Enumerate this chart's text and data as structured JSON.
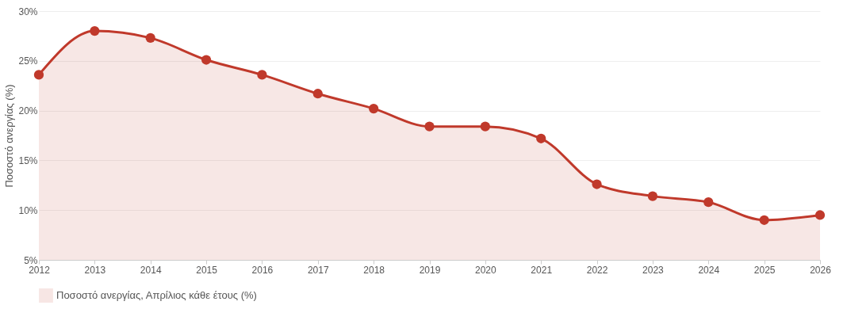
{
  "chart_data": {
    "type": "area",
    "ylabel": "Ποσοστό ανεργίας (%)",
    "categories": [
      "2012",
      "2013",
      "2014",
      "2015",
      "2016",
      "2017",
      "2018",
      "2019",
      "2020",
      "2021",
      "2022",
      "2023",
      "2024",
      "2025",
      "2026"
    ],
    "series": [
      {
        "name": "Ποσοστό ανεργίας, Απρίλιος κάθε έτους (%)",
        "color": "#c0392b",
        "values": [
          23.6,
          28.0,
          27.3,
          25.1,
          23.6,
          21.7,
          20.2,
          18.4,
          18.4,
          17.2,
          12.6,
          11.4,
          10.8,
          9.0,
          9.5
        ]
      }
    ],
    "ylim": [
      5,
      30
    ],
    "yticks": [
      {
        "value": 5,
        "label": "5%"
      },
      {
        "value": 10,
        "label": "10%"
      },
      {
        "value": 15,
        "label": "15%"
      },
      {
        "value": 20,
        "label": "20%"
      },
      {
        "value": 25,
        "label": "25%"
      },
      {
        "value": 30,
        "label": "30%"
      }
    ],
    "grid": "y",
    "legend": "bottom",
    "marker": "circle",
    "line_style": "solid"
  }
}
